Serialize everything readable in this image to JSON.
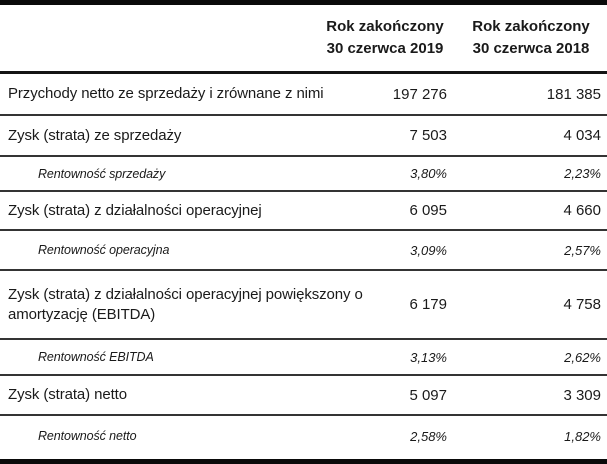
{
  "colors": {
    "background": "#ffffff",
    "text": "#1a1a1a",
    "rule_thick": "#0a0a0a",
    "rule_thin": "#343434"
  },
  "table": {
    "columns": [
      {
        "line1": "Rok zakończony",
        "line2": "30 czerwca 2019"
      },
      {
        "line1": "Rok zakończony",
        "line2": "30 czerwca 2018"
      }
    ],
    "rows": [
      {
        "label": "Przychody netto ze sprzedaży i zrównane z nimi",
        "fy2019": "197 276",
        "fy2018": "181 385",
        "type": "main"
      },
      {
        "label": "Zysk (strata) ze sprzedaży",
        "fy2019": "7 503",
        "fy2018": "4 034",
        "type": "main"
      },
      {
        "label": "Rentowność sprzedaży",
        "fy2019": "3,80%",
        "fy2018": "2,23%",
        "type": "sub"
      },
      {
        "label": "Zysk (strata) z działalności operacyjnej",
        "fy2019": "6 095",
        "fy2018": "4 660",
        "type": "main"
      },
      {
        "label": "Rentowność operacyjna",
        "fy2019": "3,09%",
        "fy2018": "2,57%",
        "type": "sub"
      },
      {
        "label": "Zysk (strata) z działalności operacyjnej powiększony o amortyzację (EBITDA)",
        "fy2019": "6 179",
        "fy2018": "4 758",
        "type": "main"
      },
      {
        "label": "Rentowność EBITDA",
        "fy2019": "3,13%",
        "fy2018": "2,62%",
        "type": "sub"
      },
      {
        "label": "Zysk (strata) netto",
        "fy2019": "5 097",
        "fy2018": "3 309",
        "type": "main"
      },
      {
        "label": "Rentowność netto",
        "fy2019": "2,58%",
        "fy2018": "1,82%",
        "type": "sub"
      }
    ]
  }
}
